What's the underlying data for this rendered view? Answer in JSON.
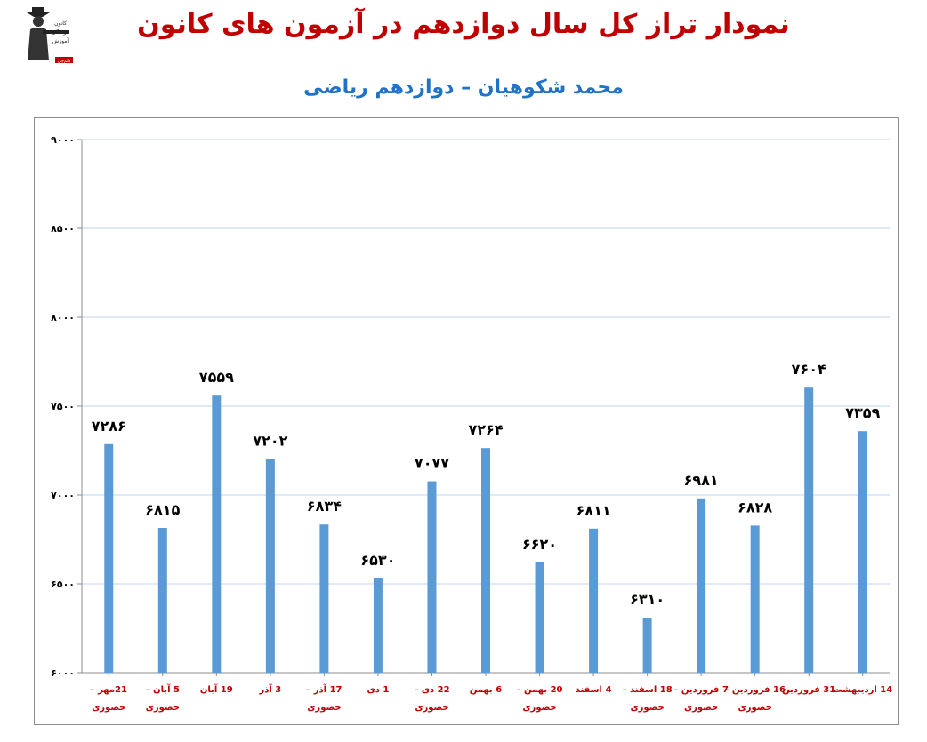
{
  "header": {
    "title": "نمودار تراز کل سال دوازدهم در آزمون های کانون",
    "subtitle": "محمد شکوهیان – دوازدهم ریاضی"
  },
  "colors": {
    "title": "#c00000",
    "subtitle": "#1f72c6",
    "bar": "#5b9bd5",
    "category_label": "#c00000",
    "gridline": "#bdd7ee"
  },
  "logo": {
    "icon": "graduate-logo-icon",
    "text": [
      "کانون",
      "فرهنگی",
      "آموزش",
      "قلم‌چی"
    ]
  },
  "chart_data": {
    "type": "bar",
    "title": "نمودار تراز کل سال دوازدهم در آزمون های کانون",
    "subtitle": "محمد شکوهیان – دوازدهم ریاضی",
    "xlabel": "",
    "ylabel": "",
    "ylim": [
      6000,
      9000
    ],
    "yticks": [
      6000,
      6500,
      7000,
      7500,
      8000,
      8500,
      9000
    ],
    "ytick_labels": [
      "۶۰۰۰",
      "۶۵۰۰",
      "۷۰۰۰",
      "۷۵۰۰",
      "۸۰۰۰",
      "۸۵۰۰",
      "۹۰۰۰"
    ],
    "grid": true,
    "legend": "none",
    "categories": [
      [
        "21مهر –",
        "حضوری"
      ],
      [
        "5 آبان –",
        "حضوری"
      ],
      [
        "19 آبان"
      ],
      [
        "3 آذر"
      ],
      [
        "17 آذر –",
        "حضوری"
      ],
      [
        "1 دی"
      ],
      [
        "22 دی –",
        "حضوری"
      ],
      [
        "6 بهمن"
      ],
      [
        "20 بهمن –",
        "حضوری"
      ],
      [
        "4 اسفند"
      ],
      [
        "18 اسفند –",
        "حضوری"
      ],
      [
        "7 فروردین –",
        "حضوری"
      ],
      [
        "16 فروردین –",
        "حضوری"
      ],
      [
        "31 فروردین"
      ],
      [
        "14 اردیبهشت"
      ]
    ],
    "values": [
      7286,
      6815,
      7559,
      7202,
      6834,
      6530,
      7077,
      7264,
      6620,
      6811,
      6310,
      6981,
      6828,
      7604,
      7359
    ],
    "value_labels": [
      "۷۲۸۶",
      "۶۸۱۵",
      "۷۵۵۹",
      "۷۲۰۲",
      "۶۸۳۴",
      "۶۵۳۰",
      "۷۰۷۷",
      "۷۲۶۴",
      "۶۶۲۰",
      "۶۸۱۱",
      "۶۳۱۰",
      "۶۹۸۱",
      "۶۸۲۸",
      "۷۶۰۴",
      "۷۳۵۹"
    ]
  }
}
